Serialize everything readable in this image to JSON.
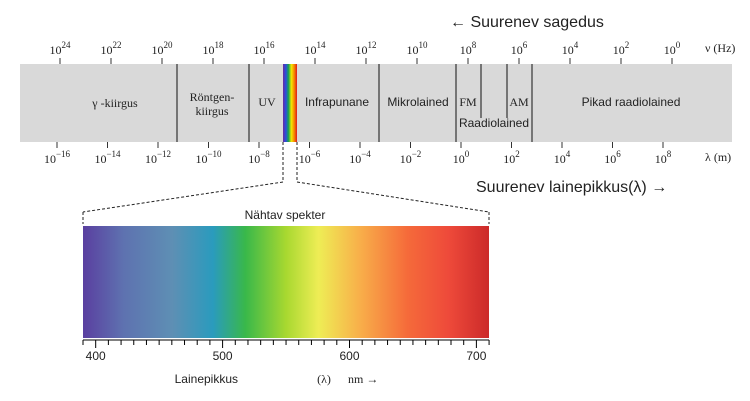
{
  "header": {
    "frequency_note": "← Suurenev sagedus",
    "wavelength_note": "Suurenev lainepikkus(λ) →"
  },
  "frequency_scale": {
    "unit": "ν (Hz)",
    "ticks": [
      {
        "base": "10",
        "exp": "24"
      },
      {
        "base": "10",
        "exp": "22"
      },
      {
        "base": "10",
        "exp": "20"
      },
      {
        "base": "10",
        "exp": "18"
      },
      {
        "base": "10",
        "exp": "16"
      },
      {
        "base": "10",
        "exp": "14"
      },
      {
        "base": "10",
        "exp": "12"
      },
      {
        "base": "10",
        "exp": "10"
      },
      {
        "base": "10",
        "exp": "8"
      },
      {
        "base": "10",
        "exp": "6"
      },
      {
        "base": "10",
        "exp": "4"
      },
      {
        "base": "10",
        "exp": "2"
      },
      {
        "base": "10",
        "exp": "0"
      }
    ]
  },
  "wavelength_scale": {
    "unit": "λ (m)",
    "ticks": [
      {
        "base": "10",
        "exp": "−16"
      },
      {
        "base": "10",
        "exp": "−14"
      },
      {
        "base": "10",
        "exp": "−12"
      },
      {
        "base": "10",
        "exp": "−10"
      },
      {
        "base": "10",
        "exp": "−8"
      },
      {
        "base": "10",
        "exp": "−6"
      },
      {
        "base": "10",
        "exp": "−4"
      },
      {
        "base": "10",
        "exp": "−2"
      },
      {
        "base": "10",
        "exp": "0"
      },
      {
        "base": "10",
        "exp": "2"
      },
      {
        "base": "10",
        "exp": "4"
      },
      {
        "base": "10",
        "exp": "6"
      },
      {
        "base": "10",
        "exp": "8"
      }
    ]
  },
  "bands": [
    "γ -kiirgus",
    "Röntgen-",
    "kiirgus",
    "UV",
    "Infrapunane",
    "Mikrolained",
    "FM",
    "AM",
    "Raadiolained",
    "Pikad raadiolained"
  ],
  "visible": {
    "title": "Nähtav spekter",
    "ticks": [
      "400",
      "500",
      "600",
      "700"
    ],
    "axis_label": "Lainepikkus",
    "axis_symbol": "(λ)",
    "axis_unit": "nm →"
  }
}
